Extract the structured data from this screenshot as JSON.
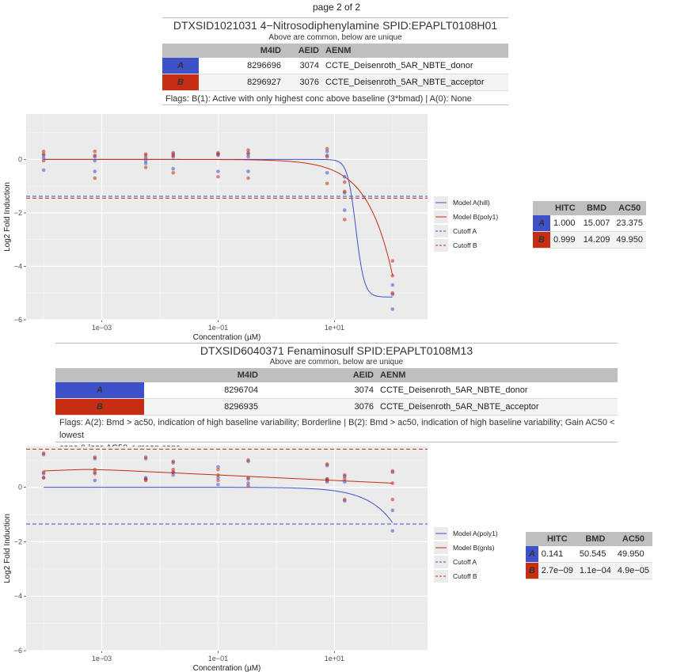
{
  "page_label": "page 2 of 2",
  "colors": {
    "a": "#3f51c8",
    "b": "#c62d12",
    "panel_bg": "#ebebeb",
    "header_bg": "#bfbfbf"
  },
  "panels": [
    {
      "title": "DTXSID1021031 4−Nitrosodiphenylamine  SPID:EPAPLT0108H01",
      "subtitle": "Above are common, below are unique",
      "table_headers": {
        "m4id": "M4ID",
        "aeid": "AEID",
        "aenm": "AENM"
      },
      "rows": [
        {
          "label": "A",
          "m4id": "8296696",
          "aeid": "3074",
          "aenm": "CCTE_Deisenroth_5AR_NBTE_donor"
        },
        {
          "label": "B",
          "m4id": "8296927",
          "aeid": "3076",
          "aenm": "CCTE_Deisenroth_5AR_NBTE_acceptor"
        }
      ],
      "flags": "Flags: B(1): Active with only highest conc above baseline (3*bmad) | A(0): None",
      "stats_headers": {
        "hitc": "HITC",
        "bmd": "BMD",
        "ac50": "AC50"
      },
      "stats": [
        {
          "label": "A",
          "hitc": "1.000",
          "bmd": "15.007",
          "ac50": "23.375"
        },
        {
          "label": "B",
          "hitc": "0.999",
          "bmd": "14.209",
          "ac50": "49.950"
        }
      ]
    },
    {
      "title": "DTXSID6040371 Fenaminosulf  SPID:EPAPLT0108M13",
      "subtitle": "Above are common, below are unique",
      "table_headers": {
        "m4id": "M4ID",
        "aeid": "AEID",
        "aenm": "AENM"
      },
      "rows": [
        {
          "label": "A",
          "m4id": "8296704",
          "aeid": "3074",
          "aenm": "CCTE_Deisenroth_5AR_NBTE_donor"
        },
        {
          "label": "B",
          "m4id": "8296935",
          "aeid": "3076",
          "aenm": "CCTE_Deisenroth_5AR_NBTE_acceptor"
        }
      ],
      "flags_line1": "Flags: A(2): Bmd > ac50, indication of high baseline variability; Borderline | B(2): Bmd > ac50, indication of high baseline variability; Gain AC50 < lowest",
      "flags_line2": "conc & loss AC50 < mean conc",
      "stats_headers": {
        "hitc": "HITC",
        "bmd": "BMD",
        "ac50": "AC50"
      },
      "stats": [
        {
          "label": "A",
          "hitc": "0.141",
          "bmd": "50.545",
          "ac50": "49.950"
        },
        {
          "label": "B",
          "hitc": "2.7e−09",
          "bmd": "1.1e−04",
          "ac50": "4.9e−05"
        }
      ]
    }
  ],
  "chart_data": [
    {
      "type": "scatter",
      "xlabel": "Concentration (µM)",
      "ylabel": "Log2 Fold Induction",
      "x_scale": "log10",
      "xlim": [
        5e-05,
        400
      ],
      "ylim": [
        -6.0,
        1.7
      ],
      "x_ticks": [
        0.001,
        0.1,
        10
      ],
      "x_tick_labels": [
        "1e−03",
        "1e−01",
        "1e+01"
      ],
      "y_ticks": [
        0,
        -2,
        -4,
        -6
      ],
      "y_tick_labels": [
        "0",
        "−2",
        "−4",
        "−6"
      ],
      "legend": [
        {
          "label": "Model A(hill)",
          "style": "solid",
          "color": "a"
        },
        {
          "label": "Model B(poly1)",
          "style": "solid",
          "color": "b"
        },
        {
          "label": "Cutoff A",
          "style": "dashed",
          "color": "a"
        },
        {
          "label": "Cutoff B",
          "style": "dashed",
          "color": "b"
        }
      ],
      "cutoffs": {
        "a": -1.38,
        "b": -1.45
      },
      "series": [
        {
          "name": "A",
          "color": "a",
          "points": [
            [
              0.0001,
              0.15
            ],
            [
              0.0001,
              -0.4
            ],
            [
              0.0001,
              0.05
            ],
            [
              0.00076,
              0.1
            ],
            [
              0.00076,
              -0.45
            ],
            [
              0.00076,
              -0.05
            ],
            [
              0.0057,
              0.15
            ],
            [
              0.0057,
              -0.05
            ],
            [
              0.0057,
              -0.15
            ],
            [
              0.0169,
              0.2
            ],
            [
              0.0169,
              -0.35
            ],
            [
              0.0169,
              0.1
            ],
            [
              0.1,
              0.2
            ],
            [
              0.1,
              -0.45
            ],
            [
              0.1,
              0.15
            ],
            [
              0.33,
              0.25
            ],
            [
              0.33,
              -0.45
            ],
            [
              0.33,
              0.1
            ],
            [
              7.5,
              0.3
            ],
            [
              7.5,
              -0.5
            ],
            [
              7.5,
              0.15
            ],
            [
              15,
              -0.65
            ],
            [
              15,
              -1.9
            ],
            [
              15,
              -1.25
            ],
            [
              100,
              -4.7
            ],
            [
              100,
              -5.05
            ],
            [
              100,
              -5.6
            ]
          ]
        },
        {
          "name": "B",
          "color": "b",
          "points": [
            [
              0.0001,
              0.3
            ],
            [
              0.0001,
              -0.05
            ],
            [
              0.0001,
              0.2
            ],
            [
              0.00076,
              0.3
            ],
            [
              0.00076,
              -0.7
            ],
            [
              0.00076,
              0.15
            ],
            [
              0.0057,
              0.2
            ],
            [
              0.0057,
              -0.3
            ],
            [
              0.0057,
              0.05
            ],
            [
              0.0169,
              0.25
            ],
            [
              0.0169,
              -0.5
            ],
            [
              0.0169,
              0.15
            ],
            [
              0.1,
              0.25
            ],
            [
              0.1,
              -0.65
            ],
            [
              0.1,
              0.2
            ],
            [
              0.33,
              0.35
            ],
            [
              0.33,
              -0.7
            ],
            [
              0.33,
              0.2
            ],
            [
              7.5,
              0.4
            ],
            [
              7.5,
              -0.9
            ],
            [
              7.5,
              0.1
            ],
            [
              15,
              -0.85
            ],
            [
              15,
              -2.25
            ],
            [
              15,
              -1.2
            ],
            [
              100,
              -3.8
            ],
            [
              100,
              -4.35
            ],
            [
              100,
              -5.0
            ]
          ]
        }
      ],
      "models": [
        {
          "name": "Model A(hill)",
          "color": "a",
          "kind": "hill",
          "tp": -5.15,
          "ga": 23.375,
          "p": 6
        },
        {
          "name": "Model B(poly1)",
          "color": "b",
          "kind": "linear",
          "slope": -0.0434
        }
      ]
    },
    {
      "type": "scatter",
      "xlabel": "Concentration (µM)",
      "ylabel": "Log2 Fold Induction",
      "x_scale": "log10",
      "xlim": [
        5e-05,
        400
      ],
      "ylim": [
        -6.0,
        1.5
      ],
      "x_ticks": [
        0.001,
        0.1,
        10
      ],
      "x_tick_labels": [
        "1e−03",
        "1e−01",
        "1e+01"
      ],
      "y_ticks": [
        0,
        -2,
        -4,
        -6
      ],
      "y_tick_labels": [
        "0",
        "−2",
        "−4",
        "−6"
      ],
      "legend": [
        {
          "label": "Model A(poly1)",
          "style": "solid",
          "color": "a"
        },
        {
          "label": "Model B(gnls)",
          "style": "solid",
          "color": "b"
        },
        {
          "label": "Cutoff A",
          "style": "dashed",
          "color": "a"
        },
        {
          "label": "Cutoff B",
          "style": "dashed",
          "color": "b"
        }
      ],
      "cutoffs": {
        "a": -1.35,
        "b": 1.4
      },
      "series": [
        {
          "name": "A",
          "color": "a",
          "points": [
            [
              0.0001,
              1.2
            ],
            [
              0.0001,
              0.5
            ],
            [
              0.0001,
              0.35
            ],
            [
              0.00076,
              1.05
            ],
            [
              0.00076,
              0.55
            ],
            [
              0.00076,
              0.25
            ],
            [
              0.0057,
              1.05
            ],
            [
              0.0057,
              0.35
            ],
            [
              0.0057,
              0.3
            ],
            [
              0.0169,
              0.9
            ],
            [
              0.0169,
              0.55
            ],
            [
              0.0169,
              0.45
            ],
            [
              0.1,
              0.75
            ],
            [
              0.1,
              0.35
            ],
            [
              0.1,
              0.1
            ],
            [
              0.33,
              0.95
            ],
            [
              0.33,
              0.3
            ],
            [
              0.33,
              0.15
            ],
            [
              7.5,
              0.8
            ],
            [
              7.5,
              0.3
            ],
            [
              7.5,
              0.2
            ],
            [
              15,
              0.4
            ],
            [
              15,
              0.2
            ],
            [
              15,
              -0.5
            ],
            [
              100,
              0.55
            ],
            [
              100,
              -0.85
            ],
            [
              100,
              -1.6
            ]
          ]
        },
        {
          "name": "B",
          "color": "b",
          "points": [
            [
              0.0001,
              1.25
            ],
            [
              0.0001,
              0.55
            ],
            [
              0.0001,
              0.35
            ],
            [
              0.00076,
              1.1
            ],
            [
              0.00076,
              0.65
            ],
            [
              0.00076,
              0.5
            ],
            [
              0.0057,
              1.1
            ],
            [
              0.0057,
              0.3
            ],
            [
              0.0057,
              0.25
            ],
            [
              0.0169,
              0.95
            ],
            [
              0.0169,
              0.65
            ],
            [
              0.0169,
              0.55
            ],
            [
              0.1,
              0.65
            ],
            [
              0.1,
              0.45
            ],
            [
              0.1,
              0.25
            ],
            [
              0.33,
              1.0
            ],
            [
              0.33,
              0.35
            ],
            [
              0.33,
              0.05
            ],
            [
              7.5,
              0.85
            ],
            [
              7.5,
              0.3
            ],
            [
              7.5,
              0.25
            ],
            [
              15,
              0.45
            ],
            [
              15,
              0.3
            ],
            [
              15,
              -0.45
            ],
            [
              100,
              0.6
            ],
            [
              100,
              0.15
            ],
            [
              100,
              -0.45
            ]
          ]
        }
      ],
      "models": [
        {
          "name": "Model A(poly1)",
          "color": "a",
          "kind": "linear",
          "slope": -0.013
        },
        {
          "name": "Model B(gnls)",
          "color": "b",
          "kind": "loglinear",
          "y_at_low": 0.6,
          "y_peak": 0.68,
          "y_high": 0.15
        }
      ]
    }
  ]
}
